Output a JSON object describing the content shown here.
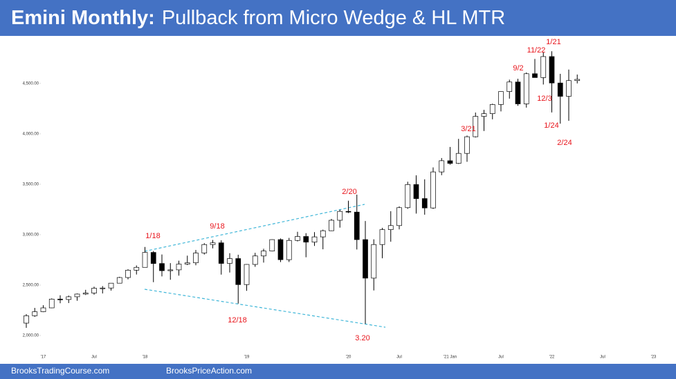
{
  "header": {
    "title_bold": "Emini Monthly:",
    "title_rest": "Pullback from Micro Wedge & HL MTR"
  },
  "footer": {
    "left": "BrooksTradingCourse.com",
    "right": "BrooksPriceAction.com"
  },
  "chart_data": {
    "type": "candlestick",
    "categories": [
      null,
      null,
      "'17",
      null,
      null,
      null,
      null,
      null,
      "Jul",
      null,
      null,
      null,
      null,
      null,
      "'18",
      null,
      null,
      null,
      null,
      null,
      null,
      null,
      null,
      null,
      null,
      null,
      "'19",
      null,
      null,
      null,
      null,
      null,
      null,
      null,
      null,
      null,
      null,
      null,
      "'20",
      null,
      null,
      null,
      null,
      null,
      "Jul",
      null,
      null,
      null,
      null,
      null,
      "'21 Jan",
      null,
      null,
      null,
      null,
      null,
      "Jul",
      null,
      null,
      null,
      null,
      null,
      "'22",
      null,
      null,
      null,
      null,
      null,
      "Jul",
      null,
      null,
      null,
      null,
      null,
      "'23"
    ],
    "open": [
      2123,
      2196,
      2236,
      2274,
      2361,
      2357,
      2384,
      2411,
      2421,
      2469,
      2471,
      2519,
      2575,
      2648,
      2676,
      2824,
      2714,
      2643,
      2651,
      2708,
      2721,
      2818,
      2902,
      2919,
      2715,
      2763,
      2505,
      2705,
      2789,
      2838,
      2951,
      2752,
      2943,
      2982,
      2926,
      2978,
      3039,
      3143,
      3231,
      3224,
      2951,
      2569,
      2902,
      3050,
      3090,
      3268,
      3497,
      3358,
      3265,
      3622,
      3733,
      3707,
      3806,
      3971,
      4173,
      4200,
      4291,
      4419,
      4514,
      4297,
      4596,
      4558,
      4766,
      4504,
      4372,
      4528,
      null,
      null,
      null,
      null,
      null,
      null,
      null,
      null,
      null
    ],
    "high": [
      2212,
      2274,
      2300,
      2368,
      2399,
      2396,
      2417,
      2453,
      2484,
      2490,
      2519,
      2582,
      2657,
      2695,
      2878,
      2838,
      2804,
      2718,
      2742,
      2792,
      2848,
      2916,
      2947,
      2944,
      2816,
      2801,
      2708,
      2820,
      2860,
      2954,
      2963,
      2968,
      3029,
      3015,
      3025,
      3050,
      3156,
      3247,
      3337,
      3397,
      3136,
      2954,
      3068,
      3233,
      3280,
      3525,
      3588,
      3549,
      3667,
      3760,
      3870,
      3950,
      3983,
      4211,
      4238,
      4299,
      4421,
      4537,
      4546,
      4608,
      4743,
      4808,
      4819,
      4595,
      4637,
      4588,
      null,
      null,
      null,
      null,
      null,
      null,
      null,
      null,
      null
    ],
    "low": [
      2076,
      2186,
      2232,
      2271,
      2320,
      2322,
      2345,
      2402,
      2405,
      2417,
      2446,
      2518,
      2557,
      2605,
      2675,
      2529,
      2586,
      2553,
      2594,
      2698,
      2697,
      2803,
      2864,
      2604,
      2625,
      2317,
      2443,
      2681,
      2723,
      2834,
      2728,
      2729,
      2934,
      2776,
      2888,
      2855,
      3036,
      3070,
      3214,
      2853,
      2116,
      2447,
      2766,
      2930,
      3053,
      3256,
      3209,
      3198,
      3255,
      3590,
      3694,
      3701,
      3723,
      3964,
      4028,
      4144,
      4222,
      4349,
      4278,
      4260,
      4565,
      4489,
      4212,
      4101,
      4129,
      4500,
      null,
      null,
      null,
      null,
      null,
      null,
      null,
      null,
      null
    ],
    "close": [
      2196,
      2236,
      2274,
      2361,
      2357,
      2384,
      2411,
      2421,
      2469,
      2471,
      2519,
      2575,
      2648,
      2676,
      2824,
      2714,
      2643,
      2651,
      2708,
      2721,
      2818,
      2902,
      2919,
      2715,
      2763,
      2505,
      2705,
      2789,
      2838,
      2951,
      2752,
      2943,
      2982,
      2926,
      2978,
      3039,
      3143,
      3231,
      3224,
      2951,
      2569,
      2902,
      3050,
      3090,
      3268,
      3497,
      3358,
      3265,
      3622,
      3733,
      3707,
      3806,
      3971,
      4173,
      4200,
      4291,
      4419,
      4514,
      4297,
      4596,
      4558,
      4766,
      4504,
      4372,
      4528,
      4540,
      null,
      null,
      null,
      null,
      null,
      null,
      null,
      null,
      null
    ],
    "ylim": [
      1870,
      4930
    ],
    "yticks": [
      {
        "value": 2000,
        "label": "2,000.00"
      },
      {
        "value": 2500,
        "label": "2,500.00"
      },
      {
        "value": 3000,
        "label": "3,000.00"
      },
      {
        "value": 3500,
        "label": "3,500.00"
      },
      {
        "value": 4000,
        "label": "4,000.00"
      },
      {
        "value": 4500,
        "label": "4,500.00"
      }
    ],
    "up_color": "#ffffff",
    "down_color": "#000000",
    "annotation_color": "#e8141b",
    "annotations": [
      "1/18",
      "9/18",
      "12/18",
      "2/20",
      "3.20",
      "3/21",
      "9/2",
      "11/22",
      "1/21",
      "12/3",
      "1/24",
      "2/24"
    ]
  }
}
